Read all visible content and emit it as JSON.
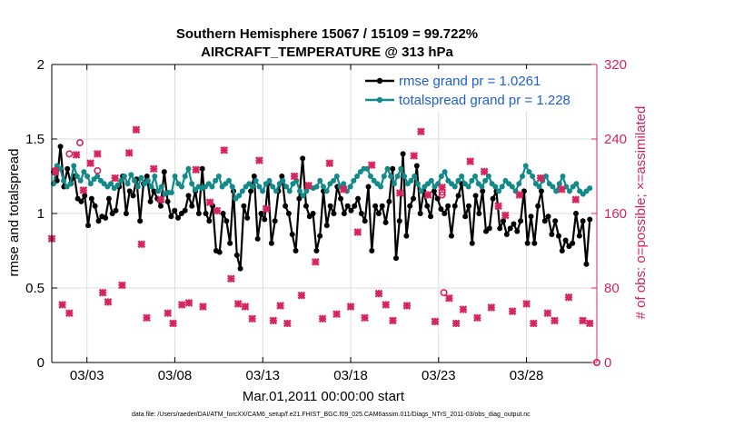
{
  "chart_data": {
    "type": "line",
    "title_line1": "Southern Hemisphere 15067 / 15109 = 99.722%",
    "title_line2": "AIRCRAFT_TEMPERATURE @ 313 hPa",
    "xlabel": "Mar.01,2011 00:00:00 start",
    "ylabel_left": "rmse and totalspread",
    "ylabel_right": "# of obs: o=possible; ×=assimilated",
    "footnote": "data file: /Users/raeder/DAI/ATM_forcXX/CAM6_setup/f.e21.FHIST_BGC.f09_025.CAM6assim.011/Diags_NTrS_2011-03/obs_diag_output.nc",
    "x_range": [
      1.0,
      32.0
    ],
    "ylim_left": [
      0,
      2
    ],
    "ylim_right": [
      0,
      320
    ],
    "x_ticks": [
      3,
      8,
      13,
      18,
      23,
      28
    ],
    "x_tick_labels": [
      "03/03",
      "03/08",
      "03/13",
      "03/18",
      "03/23",
      "03/28"
    ],
    "y_ticks_left": [
      "0",
      "0.5",
      "1",
      "1.5",
      "2"
    ],
    "y_ticks_right": [
      "0",
      "80",
      "160",
      "240",
      "320"
    ],
    "grid": true,
    "legend": {
      "position": "top-right",
      "entries": [
        "rmse grand pr = 1.0261",
        "totalspread grand pr = 1.228"
      ]
    },
    "colors": {
      "rmse": "#000000",
      "spread": "#138a8a",
      "obs": "#d6245e",
      "axis_right": "#d6245e",
      "legend_text": "#1f5fd6",
      "grid": "#dedede"
    },
    "series": [
      {
        "name": "rmse",
        "axis": "left",
        "values": [
          1.28,
          1.22,
          1.45,
          1.18,
          1.3,
          1.2,
          1.25,
          1.1,
          1.08,
          1.12,
          0.92,
          1.1,
          1.05,
          0.95,
          0.98,
          0.97,
          1.1,
          1.0,
          1.02,
          1.18,
          1.25,
          1.0,
          1.15,
          1.12,
          1.23,
          0.95,
          1.2,
          1.25,
          1.08,
          1.15,
          1.1,
          1.05,
          1.28,
          1.08,
          0.98,
          1.02,
          0.97,
          1.0,
          1.02,
          1.12,
          1.05,
          1.15,
          1.0,
          1.3,
          1.0,
          0.95,
          1.05,
          0.75,
          0.74,
          1.0,
          0.95,
          0.8,
          1.15,
          0.72,
          0.63,
          1.05,
          0.97,
          1.15,
          1.25,
          0.83,
          1.0,
          0.96,
          1.2,
          0.8,
          0.95,
          1.15,
          1.25,
          1.05,
          1.0,
          0.86,
          0.75,
          1.1,
          1.37,
          1.05,
          0.98,
          1.0,
          0.75,
          0.85,
          1.15,
          0.92,
          1.05,
          1.0,
          1.18,
          1.1,
          1.0,
          1.05,
          1.02,
          1.05,
          1.1,
          1.0,
          0.95,
          1.18,
          0.75,
          1.05,
          1.0,
          1.05,
          0.94,
          1.08,
          1.3,
          0.7,
          0.95,
          1.4,
          0.85,
          1.05,
          1.1,
          1.32,
          1.0,
          1.15,
          1.05,
          0.98,
          1.15,
          1.1,
          1.03,
          1.0,
          1.05,
          0.85,
          1.05,
          1.12,
          1.2,
          0.98,
          1.05,
          0.8,
          1.12,
          1.0,
          1.15,
          0.88,
          0.9,
          1.1,
          1.15,
          0.9,
          0.95,
          0.86,
          0.9,
          0.93,
          0.88,
          0.95,
          1.15,
          0.8,
          0.98,
          0.8,
          1.05,
          1.15,
          0.95,
          0.98,
          0.86,
          0.95,
          0.85,
          0.75,
          0.82,
          0.78,
          0.8,
          1.0,
          0.85,
          0.95,
          0.66,
          0.96
        ],
        "label": "rmse grand pr = 1.0261"
      },
      {
        "name": "totalspread",
        "axis": "left",
        "values": [
          1.2,
          1.32,
          1.3,
          1.22,
          1.18,
          1.2,
          1.32,
          1.25,
          1.22,
          1.28,
          1.25,
          1.2,
          1.23,
          1.25,
          1.22,
          1.2,
          1.18,
          1.2,
          1.17,
          1.19,
          1.22,
          1.25,
          1.2,
          1.26,
          1.22,
          1.18,
          1.24,
          1.2,
          1.22,
          1.18,
          1.25,
          1.15,
          1.18,
          1.13,
          1.14,
          1.14,
          1.25,
          1.2,
          1.18,
          1.25,
          1.3,
          1.2,
          1.16,
          1.18,
          1.17,
          1.18,
          1.2,
          1.18,
          1.22,
          1.25,
          1.18,
          1.2,
          1.22,
          1.18,
          1.1,
          1.12,
          1.15,
          1.18,
          1.2,
          1.18,
          1.22,
          1.18,
          1.15,
          1.2,
          1.22,
          1.18,
          1.15,
          1.2,
          1.22,
          1.18,
          1.15,
          1.2,
          1.22,
          1.15,
          1.12,
          1.15,
          1.18,
          1.17,
          1.18,
          1.22,
          1.18,
          1.15,
          1.2,
          1.22,
          1.25,
          1.18,
          1.2,
          1.15,
          1.18,
          1.22,
          1.25,
          1.28,
          1.3,
          1.3,
          1.25,
          1.22,
          1.2,
          1.18,
          1.25,
          1.3,
          1.25,
          1.2,
          1.25,
          1.3,
          1.25,
          1.2,
          1.22,
          1.25,
          1.2,
          1.15,
          1.18,
          1.2,
          1.22,
          1.18,
          1.2,
          1.25,
          1.28,
          1.22,
          1.2,
          1.18,
          1.22,
          1.25,
          1.2,
          1.18,
          1.22,
          1.25,
          1.2,
          1.18,
          1.22,
          1.25,
          1.2,
          1.18,
          1.15,
          1.18,
          1.22,
          1.2,
          1.18,
          1.15,
          1.2,
          1.25,
          1.32,
          1.28,
          1.25,
          1.2,
          1.18,
          1.22,
          1.25,
          1.2,
          1.18,
          1.15,
          1.2,
          1.25,
          1.18,
          1.15,
          1.18,
          1.2,
          1.15,
          1.13,
          1.15,
          1.17
        ],
        "label": "totalspread grand pr = 1.228"
      },
      {
        "name": "obs_possible",
        "axis": "right",
        "marker": "o",
        "points": [
          [
            1.2,
            206
          ],
          [
            2.0,
            224
          ],
          [
            2.6,
            236
          ],
          [
            3.6,
            206
          ],
          [
            23.2,
            183
          ],
          [
            23.2,
            180
          ],
          [
            23.3,
            75
          ],
          [
            32.0,
            0
          ]
        ]
      },
      {
        "name": "obs_assimilated",
        "axis": "right",
        "marker": "x",
        "points": [
          [
            1.0,
            133
          ],
          [
            1.2,
            205
          ],
          [
            1.6,
            62
          ],
          [
            2.0,
            53
          ],
          [
            2.4,
            223
          ],
          [
            2.8,
            185
          ],
          [
            3.2,
            214
          ],
          [
            3.6,
            224
          ],
          [
            3.9,
            75
          ],
          [
            4.2,
            65
          ],
          [
            4.6,
            198
          ],
          [
            5.0,
            83
          ],
          [
            5.4,
            225
          ],
          [
            5.8,
            250
          ],
          [
            6.1,
            127
          ],
          [
            6.4,
            48
          ],
          [
            6.8,
            208
          ],
          [
            7.2,
            175
          ],
          [
            7.6,
            53
          ],
          [
            7.9,
            42
          ],
          [
            8.4,
            62
          ],
          [
            8.8,
            64
          ],
          [
            9.2,
            207
          ],
          [
            9.6,
            60
          ],
          [
            10.0,
            172
          ],
          [
            10.4,
            163
          ],
          [
            10.8,
            228
          ],
          [
            11.2,
            90
          ],
          [
            11.6,
            63
          ],
          [
            12.0,
            60
          ],
          [
            12.4,
            47
          ],
          [
            12.8,
            217
          ],
          [
            13.2,
            165
          ],
          [
            13.6,
            45
          ],
          [
            14.0,
            61
          ],
          [
            14.4,
            42
          ],
          [
            14.8,
            200
          ],
          [
            15.2,
            72
          ],
          [
            15.6,
            190
          ],
          [
            16.0,
            108
          ],
          [
            16.4,
            47
          ],
          [
            16.8,
            214
          ],
          [
            17.2,
            52
          ],
          [
            17.6,
            186
          ],
          [
            18.0,
            60
          ],
          [
            18.4,
            140
          ],
          [
            18.8,
            48
          ],
          [
            19.2,
            212
          ],
          [
            19.6,
            74
          ],
          [
            20.0,
            62
          ],
          [
            20.4,
            45
          ],
          [
            20.8,
            182
          ],
          [
            21.2,
            61
          ],
          [
            21.6,
            222
          ],
          [
            22.0,
            248
          ],
          [
            22.4,
            180
          ],
          [
            22.8,
            44
          ],
          [
            23.2,
            188
          ],
          [
            23.6,
            69
          ],
          [
            24.0,
            42
          ],
          [
            24.4,
            57
          ],
          [
            24.8,
            216
          ],
          [
            25.2,
            48
          ],
          [
            25.6,
            205
          ],
          [
            26.0,
            59
          ],
          [
            26.4,
            168
          ],
          [
            26.8,
            158
          ],
          [
            27.2,
            55
          ],
          [
            27.6,
            180
          ],
          [
            28.0,
            63
          ],
          [
            28.4,
            42
          ],
          [
            28.8,
            198
          ],
          [
            29.2,
            53
          ],
          [
            29.6,
            45
          ],
          [
            30.0,
            186
          ],
          [
            30.4,
            70
          ],
          [
            30.8,
            175
          ],
          [
            31.2,
            45
          ],
          [
            31.6,
            42
          ]
        ]
      }
    ]
  }
}
